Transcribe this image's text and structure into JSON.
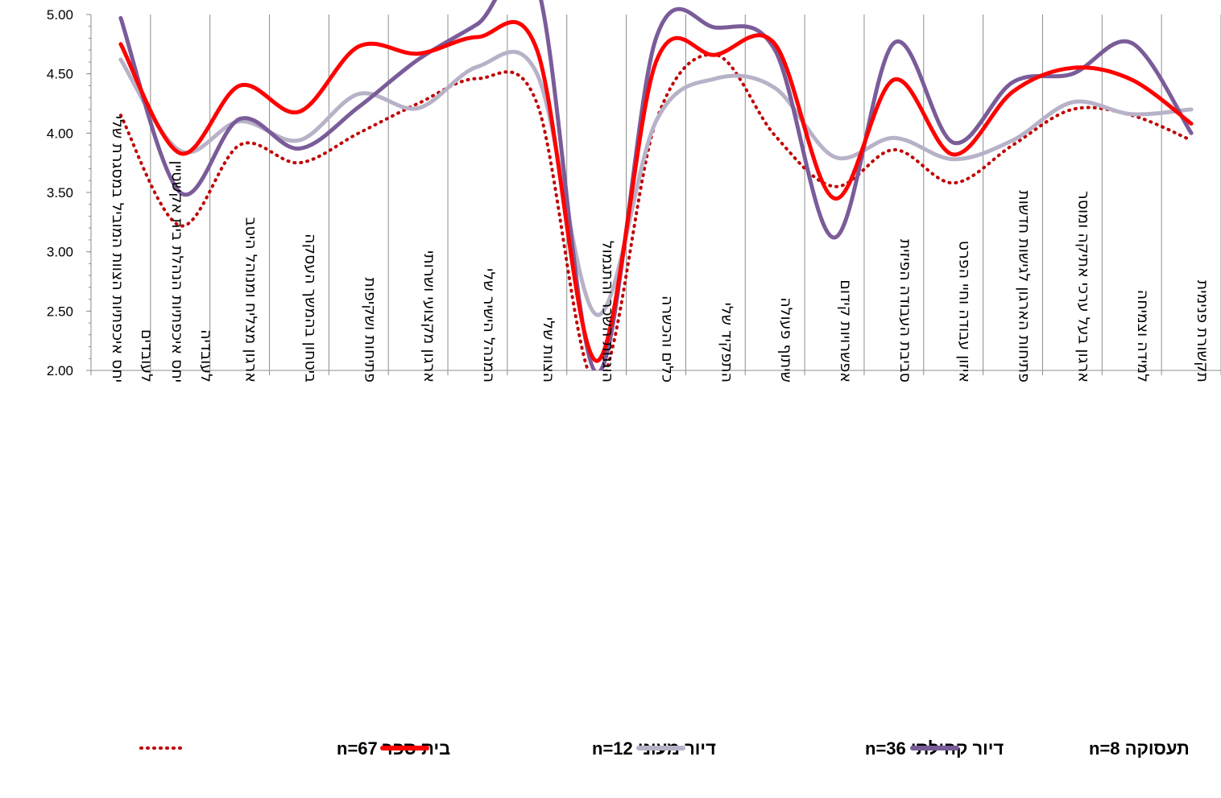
{
  "chart_data": {
    "type": "line",
    "smooth": true,
    "direction": "rtl",
    "ylim": [
      2.0,
      5.0
    ],
    "yticks": [
      "5.00",
      "4.50",
      "4.00",
      "3.50",
      "3.00",
      "2.50",
      "2.00"
    ],
    "ytick_values": [
      5.0,
      4.5,
      4.0,
      3.5,
      3.0,
      2.5,
      2.0
    ],
    "grid": "vertical",
    "legend_position": "bottom",
    "categories": [
      [
        "יחס איכפתיות הצוות המוביל במסגרת שלי",
        "לעובדים"
      ],
      [
        "יחס איכפתיות הנהלת בית אקשטיין",
        "לעובדיה"
      ],
      [
        "ארגון מצליח ומנוהל היטב"
      ],
      [
        "ביטחון בהמשך העסקה"
      ],
      [
        "פתיחות ושקיפות"
      ],
      [
        "ארגון מקצועי ושרותי"
      ],
      [
        "המנהל הישיר שלי"
      ],
      [
        "הצוות שלי"
      ],
      [
        "הוגנות השכר והתגמול"
      ],
      [
        "כלים והכשרה"
      ],
      [
        "התפקיד שלי"
      ],
      [
        "שיתוף פעולה"
      ],
      [
        "אפשרויות קידום"
      ],
      [
        "סביבת העבודה הפיזית"
      ],
      [
        "איזון עבודה וחיי הפרט"
      ],
      [
        "פתיחות הארגון לגישות חדשות"
      ],
      [
        "ארגון בעל ערכי אתיקה ומוסר"
      ],
      [
        "למידה וצמיחה"
      ],
      [
        "תקשורת פנימית"
      ]
    ],
    "series": [
      {
        "name": "בית ספר n=67",
        "style": "dotted",
        "color": "#C00000",
        "values": [
          4.15,
          3.22,
          3.9,
          3.75,
          4.0,
          4.25,
          4.46,
          4.25,
          1.88,
          4.1,
          4.66,
          3.98,
          3.55,
          3.86,
          3.58,
          3.9,
          4.2,
          4.15,
          3.94
        ]
      },
      {
        "name": "דיור מעוני n=12",
        "style": "solid",
        "color": "#FF0000",
        "values": [
          4.75,
          3.83,
          4.4,
          4.18,
          4.73,
          4.67,
          4.81,
          4.7,
          2.08,
          4.6,
          4.66,
          4.75,
          3.45,
          4.45,
          3.82,
          4.35,
          4.55,
          4.45,
          4.08
        ]
      },
      {
        "name": "דיור קהילתי n=36",
        "style": "solid",
        "color": "#B8B2C8",
        "values": [
          4.62,
          3.85,
          4.1,
          3.94,
          4.33,
          4.21,
          4.56,
          4.5,
          2.47,
          4.1,
          4.46,
          4.38,
          3.8,
          3.96,
          3.78,
          3.94,
          4.26,
          4.16,
          4.2
        ]
      },
      {
        "name": "תעסוקה n=8",
        "style": "solid",
        "color": "#7A5C99",
        "values": [
          4.97,
          3.5,
          4.12,
          3.87,
          4.22,
          4.62,
          4.92,
          5.25,
          1.98,
          4.8,
          4.89,
          4.7,
          3.12,
          4.76,
          3.92,
          4.43,
          4.5,
          4.76,
          4.0
        ]
      }
    ]
  }
}
